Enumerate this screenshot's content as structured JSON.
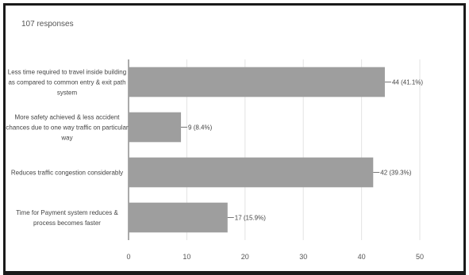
{
  "summary": "107 responses",
  "chart_data": {
    "type": "bar",
    "orientation": "horizontal",
    "categories": [
      "Less time required to travel inside building as compared to common entry & exit path system",
      "More safety achieved & less accident chances due to one way traffic on particular way",
      "Reduces traffic congestion considerably",
      "Time for Payment system reduces & process becomes faster"
    ],
    "values": [
      44,
      9,
      42,
      17
    ],
    "data_labels": [
      "44 (41.1%)",
      "9 (8.4%)",
      "42 (39.3%)",
      "17 (15.9%)"
    ],
    "x_ticks": [
      "0",
      "10",
      "20",
      "30",
      "40",
      "50"
    ],
    "xlim": [
      0,
      50
    ],
    "grid": "vertical",
    "bar_color": "#9e9e9e"
  }
}
